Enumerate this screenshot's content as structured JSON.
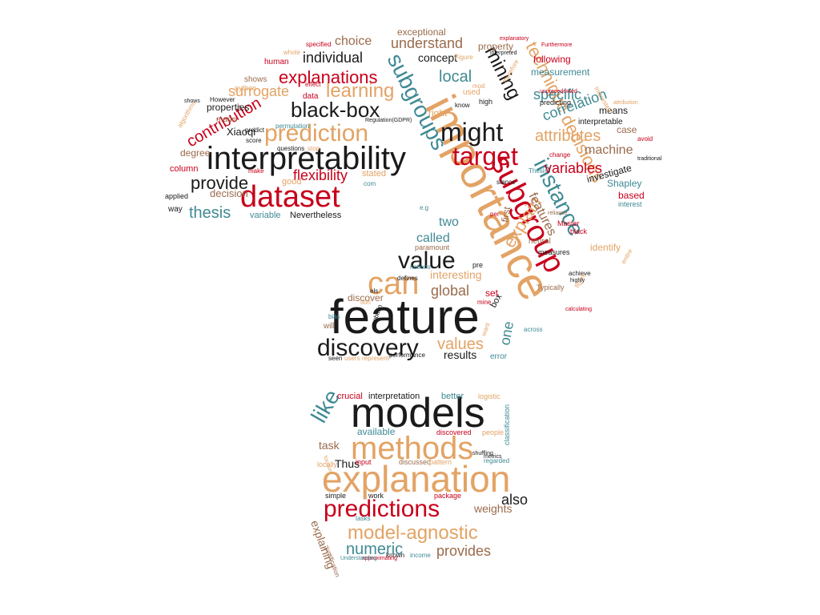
{
  "palette": {
    "black": "#1a1a1a",
    "tan": "#e3a365",
    "red": "#c8001b",
    "teal": "#3f8a94",
    "brown": "#9a6b4c"
  },
  "words": [
    {
      "id": "feature",
      "text": "feature",
      "color": "black"
    },
    {
      "id": "importance",
      "text": "importance",
      "color": "tan"
    },
    {
      "id": "models",
      "text": "models",
      "color": "black"
    },
    {
      "id": "explanation",
      "text": "explanation",
      "color": "tan"
    },
    {
      "id": "interpretability",
      "text": "interpretability",
      "color": "black"
    },
    {
      "id": "methods",
      "text": "methods",
      "color": "tan"
    },
    {
      "id": "dataset",
      "text": "dataset",
      "color": "red"
    },
    {
      "id": "subgroup",
      "text": "subgroup",
      "color": "red"
    },
    {
      "id": "predictions",
      "text": "predictions",
      "color": "red"
    },
    {
      "id": "discovery",
      "text": "discovery",
      "color": "black"
    },
    {
      "id": "prediction",
      "text": "prediction",
      "color": "tan"
    },
    {
      "id": "target",
      "text": "target",
      "color": "red"
    },
    {
      "id": "model-agnostic",
      "text": "model-agnostic",
      "color": "tan"
    },
    {
      "id": "value",
      "text": "value",
      "color": "black"
    },
    {
      "id": "can",
      "text": "can",
      "color": "tan"
    },
    {
      "id": "might",
      "text": "might",
      "color": "black"
    },
    {
      "id": "black-box",
      "text": "black-box",
      "color": "black"
    },
    {
      "id": "subgroups",
      "text": "subgroups",
      "color": "teal"
    },
    {
      "id": "instance",
      "text": "instance",
      "color": "teal"
    },
    {
      "id": "decisions",
      "text": "decisions",
      "color": "tan"
    },
    {
      "id": "technique",
      "text": "technique",
      "color": "tan"
    },
    {
      "id": "mining",
      "text": "mining",
      "color": "black"
    },
    {
      "id": "learning",
      "text": "learning",
      "color": "tan"
    },
    {
      "id": "explanations",
      "text": "explanations",
      "color": "red"
    },
    {
      "id": "provide",
      "text": "provide",
      "color": "black"
    },
    {
      "id": "contribution",
      "text": "contribution",
      "color": "red"
    },
    {
      "id": "thesis",
      "text": "thesis",
      "color": "teal"
    },
    {
      "id": "flexibility",
      "text": "flexibility",
      "color": "red"
    },
    {
      "id": "explain",
      "text": "explain",
      "color": "tan"
    },
    {
      "id": "attributes",
      "text": "attributes",
      "color": "tan"
    },
    {
      "id": "specific",
      "text": "specific",
      "color": "teal"
    },
    {
      "id": "local",
      "text": "local",
      "color": "teal"
    },
    {
      "id": "individual",
      "text": "individual",
      "color": "black"
    },
    {
      "id": "surrogate",
      "text": "surrogate",
      "color": "tan"
    },
    {
      "id": "understand",
      "text": "understand",
      "color": "brown"
    },
    {
      "id": "choice",
      "text": "choice",
      "color": "brown"
    },
    {
      "id": "correlation",
      "text": "correlation",
      "color": "teal"
    },
    {
      "id": "variables",
      "text": "variables",
      "color": "red"
    },
    {
      "id": "machine",
      "text": "machine",
      "color": "brown"
    },
    {
      "id": "values",
      "text": "values",
      "color": "tan"
    },
    {
      "id": "global",
      "text": "global",
      "color": "brown"
    },
    {
      "id": "called",
      "text": "called",
      "color": "teal"
    },
    {
      "id": "like",
      "text": "like",
      "color": "teal"
    },
    {
      "id": "also",
      "text": "also",
      "color": "black"
    },
    {
      "id": "numeric",
      "text": "numeric",
      "color": "teal"
    },
    {
      "id": "provides",
      "text": "provides",
      "color": "brown"
    },
    {
      "id": "explaining",
      "text": "explaining",
      "color": "brown"
    },
    {
      "id": "features",
      "text": "features",
      "color": "brown"
    },
    {
      "id": "one",
      "text": "one",
      "color": "teal"
    },
    {
      "id": "concept",
      "text": "concept",
      "color": "black"
    },
    {
      "id": "exceptional",
      "text": "exceptional",
      "color": "brown"
    },
    {
      "id": "interesting",
      "text": "interesting",
      "color": "tan"
    },
    {
      "id": "two",
      "text": "two",
      "color": "teal"
    },
    {
      "id": "results",
      "text": "results",
      "color": "black"
    },
    {
      "id": "task",
      "text": "task",
      "color": "brown"
    },
    {
      "id": "crucial",
      "text": "crucial",
      "color": "red"
    },
    {
      "id": "interpretation",
      "text": "interpretation",
      "color": "black"
    },
    {
      "id": "better",
      "text": "better",
      "color": "teal"
    },
    {
      "id": "available",
      "text": "available",
      "color": "teal"
    },
    {
      "id": "weights",
      "text": "weights",
      "color": "brown"
    },
    {
      "id": "package",
      "text": "package",
      "color": "red"
    },
    {
      "id": "Thus",
      "text": "Thus",
      "color": "black"
    },
    {
      "id": "measurement",
      "text": "measurement",
      "color": "teal"
    },
    {
      "id": "following",
      "text": "following",
      "color": "red"
    },
    {
      "id": "property",
      "text": "property",
      "color": "brown"
    },
    {
      "id": "investigate",
      "text": "investigate",
      "color": "black"
    },
    {
      "id": "Shapley",
      "text": "Shapley",
      "color": "teal"
    },
    {
      "id": "based",
      "text": "based",
      "color": "red"
    },
    {
      "id": "identify",
      "text": "identify",
      "color": "tan"
    },
    {
      "id": "first",
      "text": "first",
      "color": "brown"
    },
    {
      "id": "Xiaoqi",
      "text": "Xiaoqi",
      "color": "black"
    },
    {
      "id": "decision",
      "text": "decision",
      "color": "brown"
    },
    {
      "id": "variable",
      "text": "variable",
      "color": "teal"
    },
    {
      "id": "Nevertheless",
      "text": "Nevertheless",
      "color": "black"
    },
    {
      "id": "degree",
      "text": "degree",
      "color": "brown"
    },
    {
      "id": "column",
      "text": "column",
      "color": "red"
    },
    {
      "id": "properties",
      "text": "properties",
      "color": "black"
    },
    {
      "id": "made",
      "text": "made",
      "color": "brown"
    },
    {
      "id": "human",
      "text": "human",
      "color": "red"
    },
    {
      "id": "shows",
      "text": "shows",
      "color": "brown"
    },
    {
      "id": "data",
      "text": "data",
      "color": "red"
    },
    {
      "id": "used",
      "text": "used",
      "color": "tan"
    },
    {
      "id": "right",
      "text": "right",
      "color": "tan"
    },
    {
      "id": "good",
      "text": "good",
      "color": "tan"
    },
    {
      "id": "stated",
      "text": "stated",
      "color": "tan"
    },
    {
      "id": "discover",
      "text": "discover",
      "color": "brown"
    },
    {
      "id": "error",
      "text": "error",
      "color": "teal"
    },
    {
      "id": "will",
      "text": "will",
      "color": "brown"
    },
    {
      "id": "way",
      "text": "way",
      "color": "black"
    },
    {
      "id": "applied",
      "text": "applied",
      "color": "black"
    },
    {
      "id": "means",
      "text": "means",
      "color": "black"
    },
    {
      "id": "interpretable",
      "text": "interpretable",
      "color": "black"
    },
    {
      "id": "case",
      "text": "case",
      "color": "brown"
    },
    {
      "id": "predicting",
      "text": "predicting",
      "color": "black"
    },
    {
      "id": "performance",
      "text": "performance",
      "color": "black"
    },
    {
      "id": "seen",
      "text": "seen",
      "color": "black"
    },
    {
      "id": "users",
      "text": "users",
      "color": "tan"
    },
    {
      "id": "represent",
      "text": "represent",
      "color": "tan"
    },
    {
      "id": "bias",
      "text": "bias",
      "color": "teal"
    },
    {
      "id": "box",
      "text": "box",
      "color": "black"
    },
    {
      "id": "set",
      "text": "set",
      "color": "red"
    },
    {
      "id": "pre",
      "text": "pre",
      "color": "black"
    },
    {
      "id": "neural",
      "text": "neural",
      "color": "brown"
    },
    {
      "id": "measures",
      "text": "measures",
      "color": "black"
    },
    {
      "id": "Typically",
      "text": "Typically",
      "color": "brown"
    },
    {
      "id": "black",
      "text": "black",
      "color": "red"
    },
    {
      "id": "Master",
      "text": "Master",
      "color": "red"
    },
    {
      "id": "interest",
      "text": "interest",
      "color": "teal"
    },
    {
      "id": "paramount",
      "text": "paramount",
      "color": "brown"
    },
    {
      "id": "nations",
      "text": "nations",
      "color": "teal"
    },
    {
      "id": "defines",
      "text": "defines",
      "color": "black"
    },
    {
      "id": "mine",
      "text": "mine",
      "color": "red"
    },
    {
      "id": "regarded",
      "text": "regarded",
      "color": "teal"
    },
    {
      "id": "classification",
      "text": "classification",
      "color": "teal"
    },
    {
      "id": "logistic",
      "text": "logistic",
      "color": "tan"
    },
    {
      "id": "people",
      "text": "people",
      "color": "tan"
    },
    {
      "id": "discovered",
      "text": "discovered",
      "color": "red"
    },
    {
      "id": "input",
      "text": "input",
      "color": "red"
    },
    {
      "id": "discussed",
      "text": "discussed",
      "color": "brown"
    },
    {
      "id": "pattern",
      "text": "pattern",
      "color": "tan"
    },
    {
      "id": "work",
      "text": "work",
      "color": "black"
    },
    {
      "id": "simple",
      "text": "simple",
      "color": "black"
    },
    {
      "id": "locally",
      "text": "locally",
      "color": "tan"
    },
    {
      "id": "known",
      "text": "known",
      "color": "black"
    },
    {
      "id": "income",
      "text": "income",
      "color": "teal"
    },
    {
      "id": "tasks",
      "text": "tasks",
      "color": "teal"
    },
    {
      "id": "high",
      "text": "high",
      "color": "black"
    },
    {
      "id": "know",
      "text": "know",
      "color": "black"
    },
    {
      "id": "effect",
      "text": "effect",
      "color": "red"
    },
    {
      "id": "python",
      "text": "python",
      "color": "tan"
    },
    {
      "id": "However",
      "text": "However",
      "color": "black"
    },
    {
      "id": "predict",
      "text": "predict",
      "color": "black"
    },
    {
      "id": "score",
      "text": "score",
      "color": "black"
    },
    {
      "id": "questions",
      "text": "questions",
      "color": "black"
    },
    {
      "id": "stop",
      "text": "stop",
      "color": "tan"
    },
    {
      "id": "permutation",
      "text": "permutation",
      "color": "teal"
    },
    {
      "id": "make",
      "text": "make",
      "color": "red"
    },
    {
      "id": "com",
      "text": "com",
      "color": "teal"
    },
    {
      "id": "whole",
      "text": "whole",
      "color": "tan"
    },
    {
      "id": "specified",
      "text": "specified",
      "color": "red"
    },
    {
      "id": "Figure",
      "text": "Figure",
      "color": "tan"
    },
    {
      "id": "change",
      "text": "change",
      "color": "red"
    },
    {
      "id": "avoid",
      "text": "avoid",
      "color": "red"
    },
    {
      "id": "achieve",
      "text": "achieve",
      "color": "black"
    },
    {
      "id": "stance",
      "text": "stance",
      "color": "black"
    },
    {
      "id": "across",
      "text": "across",
      "color": "teal"
    },
    {
      "id": "entire",
      "text": "entire",
      "color": "tan"
    },
    {
      "id": "e.g",
      "text": "e.g",
      "color": "teal"
    },
    {
      "id": "per",
      "text": "per",
      "color": "red"
    },
    {
      "id": "Interested",
      "text": "Interested",
      "color": "tan"
    },
    {
      "id": "Thesis",
      "text": "Thesis",
      "color": "teal"
    },
    {
      "id": "therefore",
      "text": "therefore",
      "color": "tan"
    },
    {
      "id": "els",
      "text": "els",
      "color": "black"
    },
    {
      "id": "tion",
      "text": "tion",
      "color": "tan"
    },
    {
      "id": "obtain",
      "text": "obtain",
      "color": "black"
    },
    {
      "id": "want",
      "text": "want",
      "color": "tan"
    },
    {
      "id": "figure",
      "text": "figure",
      "color": "tan"
    },
    {
      "id": "highly",
      "text": "highly",
      "color": "black"
    },
    {
      "id": "unprecedented",
      "text": "unprecedented",
      "color": "red"
    },
    {
      "id": "mod",
      "text": "mod",
      "color": "tan"
    },
    {
      "id": "Furthermore",
      "text": "Furthermore",
      "color": "red"
    },
    {
      "id": "explanatory",
      "text": "explanatory",
      "color": "red"
    },
    {
      "id": "interpreted",
      "text": "interpreted",
      "color": "black"
    },
    {
      "id": "justification",
      "text": "justification",
      "color": "brown"
    },
    {
      "id": "metrics",
      "text": "metrics",
      "color": "black"
    },
    {
      "id": "shuffling",
      "text": "shuffling",
      "color": "black"
    },
    {
      "id": "approximating",
      "text": "approximating",
      "color": "red"
    },
    {
      "id": "Understanding",
      "text": "Understanding",
      "color": "teal"
    },
    {
      "id": "focuses",
      "text": "focuses",
      "color": "tan"
    },
    {
      "id": "reliance",
      "text": "reliance",
      "color": "brown"
    },
    {
      "id": "Regulation",
      "text": "Regulation(GDPR)",
      "color": "black"
    },
    {
      "id": "algorithms",
      "text": "algorithms",
      "color": "tan"
    },
    {
      "id": "traditional",
      "text": "traditional",
      "color": "black"
    },
    {
      "id": "calculating",
      "text": "calculating",
      "color": "red"
    },
    {
      "id": "attribution",
      "text": "attribution",
      "color": "tan"
    },
    {
      "id": "shows2",
      "text": "shows",
      "color": "black"
    }
  ]
}
